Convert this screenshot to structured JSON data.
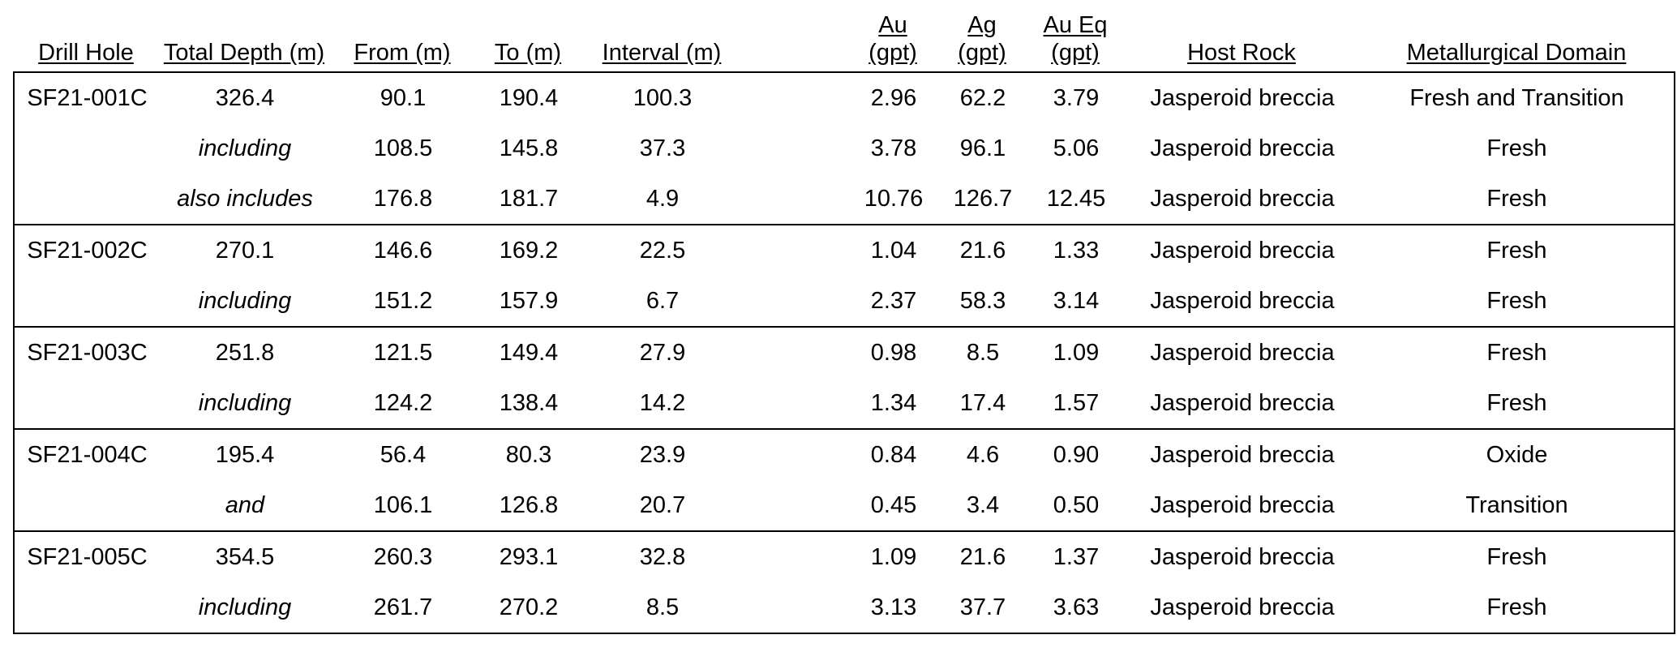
{
  "headers": {
    "drill_hole": "Drill Hole",
    "total_depth": "Total Depth (m)",
    "from": "From (m)",
    "to": "To (m)",
    "interval": "Interval (m)",
    "au": [
      "Au",
      "(gpt)"
    ],
    "ag": [
      "Ag",
      "(gpt)"
    ],
    "au_eq": [
      "Au Eq",
      "(gpt)"
    ],
    "host_rock": "Host Rock",
    "met_domain": "Metallurgical Domain"
  },
  "rows": [
    {
      "hole": "SF21-001C",
      "depth": "326.4",
      "from": "90.1",
      "to": "190.4",
      "interval": "100.3",
      "au": "2.96",
      "ag": "62.2",
      "aueq": "3.79",
      "host": "Jasperoid breccia",
      "domain": "Fresh and Transition"
    },
    {
      "hole": "",
      "depth": "including",
      "from": "108.5",
      "to": "145.8",
      "interval": "37.3",
      "au": "3.78",
      "ag": "96.1",
      "aueq": "5.06",
      "host": "Jasperoid breccia",
      "domain": "Fresh"
    },
    {
      "hole": "",
      "depth": "also includes",
      "from": "176.8",
      "to": "181.7",
      "interval": "4.9",
      "au": "10.76",
      "ag": "126.7",
      "aueq": "12.45",
      "host": "Jasperoid breccia",
      "domain": "Fresh"
    },
    {
      "hole": "SF21-002C",
      "depth": "270.1",
      "from": "146.6",
      "to": "169.2",
      "interval": "22.5",
      "au": "1.04",
      "ag": "21.6",
      "aueq": "1.33",
      "host": "Jasperoid breccia",
      "domain": "Fresh"
    },
    {
      "hole": "",
      "depth": "including",
      "from": "151.2",
      "to": "157.9",
      "interval": "6.7",
      "au": "2.37",
      "ag": "58.3",
      "aueq": "3.14",
      "host": "Jasperoid breccia",
      "domain": "Fresh"
    },
    {
      "hole": "SF21-003C",
      "depth": "251.8",
      "from": "121.5",
      "to": "149.4",
      "interval": "27.9",
      "au": "0.98",
      "ag": "8.5",
      "aueq": "1.09",
      "host": "Jasperoid breccia",
      "domain": "Fresh"
    },
    {
      "hole": "",
      "depth": "including",
      "from": "124.2",
      "to": "138.4",
      "interval": "14.2",
      "au": "1.34",
      "ag": "17.4",
      "aueq": "1.57",
      "host": "Jasperoid breccia",
      "domain": "Fresh"
    },
    {
      "hole": "SF21-004C",
      "depth": "195.4",
      "from": "56.4",
      "to": "80.3",
      "interval": "23.9",
      "au": "0.84",
      "ag": "4.6",
      "aueq": "0.90",
      "host": "Jasperoid breccia",
      "domain": "Oxide"
    },
    {
      "hole": "",
      "depth": "and",
      "from": "106.1",
      "to": "126.8",
      "interval": "20.7",
      "au": "0.45",
      "ag": "3.4",
      "aueq": "0.50",
      "host": "Jasperoid breccia",
      "domain": "Transition"
    },
    {
      "hole": "SF21-005C",
      "depth": "354.5",
      "from": "260.3",
      "to": "293.1",
      "interval": "32.8",
      "au": "1.09",
      "ag": "21.6",
      "aueq": "1.37",
      "host": "Jasperoid breccia",
      "domain": "Fresh"
    },
    {
      "hole": "",
      "depth": "including",
      "from": "261.7",
      "to": "270.2",
      "interval": "8.5",
      "au": "3.13",
      "ag": "37.7",
      "aueq": "3.63",
      "host": "Jasperoid breccia",
      "domain": "Fresh"
    }
  ]
}
